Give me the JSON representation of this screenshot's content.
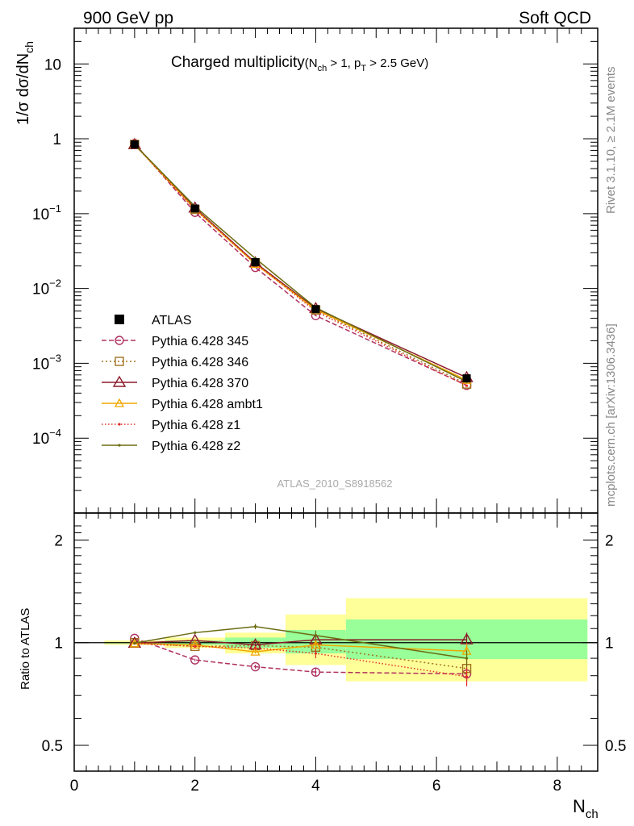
{
  "header": {
    "left": "900 GeV pp",
    "right": "Soft QCD"
  },
  "side_labels": {
    "rivet": "Rivet 3.1.10, ≥ 2.1M events",
    "mcplots": "mcplots.cern.ch [arXiv:1306.3436]"
  },
  "colors": {
    "data": "#000000",
    "band_stat": "#99ff99",
    "band_total": "#ffff99"
  },
  "chart_data": [
    {
      "panel": "main",
      "type": "line",
      "title_main": "Charged multiplicity",
      "title_cut": "(N_ch > 1, p_T > 2.5 GeV)",
      "title_parts": {
        "t1": "Charged multiplicity",
        "t2": "(N",
        "t3": "ch",
        "t4": " > 1, p",
        "t5": "T",
        "t6": " > 2.5 GeV)"
      },
      "ylabel": "1/σ dσ/dN_ch",
      "ylabel_parts": {
        "main": "1/σ dσ/dN",
        "sub": "ch"
      },
      "yscale": "log",
      "ylim": [
        1e-05,
        30
      ],
      "xlim": [
        0,
        8.67
      ],
      "y_tick_labels": [
        {
          "v": 10,
          "base": "10",
          "exp": ""
        },
        {
          "v": 1,
          "base": "1",
          "exp": ""
        },
        {
          "v": 0.1,
          "base": "10",
          "exp": "−1"
        },
        {
          "v": 0.01,
          "base": "10",
          "exp": "−2"
        },
        {
          "v": 0.001,
          "base": "10",
          "exp": "−3"
        },
        {
          "v": 0.0001,
          "base": "10",
          "exp": "−4"
        }
      ],
      "watermark": "ATLAS_2010_S8918562",
      "legend_position": "left-middle",
      "data": {
        "name": "ATLAS",
        "x": [
          1,
          2,
          3,
          4,
          6.5
        ],
        "y": [
          0.84,
          0.117,
          0.0225,
          0.0053,
          0.00063
        ]
      },
      "series": [
        {
          "name": "Pythia 6.428 345",
          "color": "#b03060",
          "dash": "6,3",
          "marker": "circle",
          "x": [
            1,
            2,
            3,
            4,
            6.5
          ],
          "y": [
            0.865,
            0.104,
            0.0191,
            0.00434,
            0.000508
          ]
        },
        {
          "name": "Pythia 6.428 346",
          "color": "#a0721e",
          "dash": "2,3",
          "marker": "square",
          "x": [
            1,
            2,
            3,
            4,
            6.5
          ],
          "y": [
            0.841,
            0.114,
            0.022,
            0.00515,
            0.000528
          ]
        },
        {
          "name": "Pythia 6.428 370",
          "color": "#8b1a2a",
          "dash": "",
          "marker": "triangle",
          "x": [
            1,
            2,
            3,
            4,
            6.5
          ],
          "y": [
            0.838,
            0.119,
            0.0221,
            0.0054,
            0.000645
          ]
        },
        {
          "name": "Pythia 6.428 ambt1",
          "color": "#f0a800",
          "dash": "",
          "marker": "triangle-small",
          "x": [
            1,
            2,
            3,
            4,
            6.5
          ],
          "y": [
            0.834,
            0.115,
            0.0212,
            0.00522,
            0.000597
          ]
        },
        {
          "name": "Pythia 6.428 z1",
          "color": "#e0302a",
          "dash": "1.5,2.5",
          "marker": "dot",
          "x": [
            1,
            2,
            3,
            4,
            6.5
          ],
          "y": [
            0.836,
            0.114,
            0.0218,
            0.00493,
            0.000502
          ]
        },
        {
          "name": "Pythia 6.428 z2",
          "color": "#6b6b12",
          "dash": "",
          "marker": "dot",
          "x": [
            1,
            2,
            3,
            4,
            6.5
          ],
          "y": [
            0.838,
            0.125,
            0.0252,
            0.00555,
            0.000568
          ]
        }
      ]
    },
    {
      "panel": "ratio",
      "type": "line",
      "ylabel": "Ratio to ATLAS",
      "xlabel": "N_ch",
      "xlabel_parts": {
        "main": "N",
        "sub": "ch"
      },
      "yscale": "log",
      "ylim": [
        0.42,
        2.4
      ],
      "xlim": [
        0,
        8.67
      ],
      "x_tick_labels": [
        "0",
        "2",
        "4",
        "6",
        "8"
      ],
      "y_tick_labels": [
        "0.5",
        "1",
        "2"
      ],
      "bands": [
        {
          "x0": 0.5,
          "x1": 1.5,
          "stat": [
            0.995,
            1.005
          ],
          "total": [
            0.985,
            1.015
          ]
        },
        {
          "x0": 1.5,
          "x1": 2.5,
          "stat": [
            0.985,
            1.015
          ],
          "total": [
            0.965,
            1.035
          ]
        },
        {
          "x0": 2.5,
          "x1": 3.5,
          "stat": [
            0.965,
            1.035
          ],
          "total": [
            0.93,
            1.07
          ]
        },
        {
          "x0": 3.5,
          "x1": 4.5,
          "stat": [
            0.93,
            1.09
          ],
          "total": [
            0.86,
            1.21
          ]
        },
        {
          "x0": 4.5,
          "x1": 8.5,
          "stat": [
            0.895,
            1.17
          ],
          "total": [
            0.77,
            1.35
          ]
        }
      ],
      "series": [
        {
          "name": "Pythia 6.428 345",
          "color": "#b03060",
          "dash": "6,3",
          "marker": "circle",
          "x": [
            1,
            2,
            3,
            4,
            6.5
          ],
          "y": [
            1.03,
            0.89,
            0.85,
            0.82,
            0.81
          ],
          "err": [
            0.005,
            0.008,
            0.012,
            0.025,
            0.04
          ]
        },
        {
          "name": "Pythia 6.428 346",
          "color": "#a0721e",
          "dash": "2,3",
          "marker": "square",
          "x": [
            1,
            2,
            3,
            4,
            6.5
          ],
          "y": [
            1.0,
            0.975,
            0.98,
            0.97,
            0.84
          ],
          "err": [
            0.005,
            0.008,
            0.012,
            0.03,
            0.05
          ]
        },
        {
          "name": "Pythia 6.428 370",
          "color": "#8b1a2a",
          "dash": "",
          "marker": "triangle",
          "x": [
            1,
            2,
            3,
            4,
            6.5
          ],
          "y": [
            0.997,
            1.015,
            0.985,
            1.02,
            1.02
          ],
          "err": [
            0.005,
            0.008,
            0.012,
            0.03,
            0.05
          ]
        },
        {
          "name": "Pythia 6.428 ambt1",
          "color": "#f0a800",
          "dash": "",
          "marker": "triangle-small",
          "x": [
            1,
            2,
            3,
            4,
            6.5
          ],
          "y": [
            0.993,
            0.985,
            0.94,
            0.985,
            0.945
          ],
          "err": [
            0.005,
            0.008,
            0.012,
            0.03,
            0.05
          ]
        },
        {
          "name": "Pythia 6.428 z1",
          "color": "#e0302a",
          "dash": "1.5,2.5",
          "marker": "dot",
          "x": [
            1,
            2,
            3,
            4,
            6.5
          ],
          "y": [
            0.995,
            0.975,
            0.965,
            0.93,
            0.795
          ],
          "err": [
            0.005,
            0.008,
            0.012,
            0.03,
            0.05
          ]
        },
        {
          "name": "Pythia 6.428 z2",
          "color": "#6b6b12",
          "dash": "",
          "marker": "dot",
          "x": [
            1,
            2,
            3,
            4,
            6.5
          ],
          "y": [
            0.997,
            1.07,
            1.115,
            1.05,
            0.9
          ],
          "err": [
            0.005,
            0.01,
            0.02,
            0.035,
            0.05
          ]
        }
      ]
    }
  ]
}
